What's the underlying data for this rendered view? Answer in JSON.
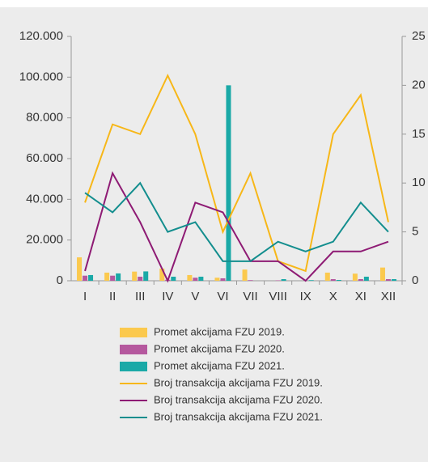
{
  "chart_data": {
    "type": "bar",
    "categories": [
      "I",
      "II",
      "III",
      "IV",
      "V",
      "VI",
      "VII",
      "VIII",
      "IX",
      "X",
      "XI",
      "XII"
    ],
    "ylim": [
      0,
      120000
    ],
    "yticks": [
      {
        "value": 0,
        "label": "0"
      },
      {
        "value": 20000,
        "label": "20.000"
      },
      {
        "value": 40000,
        "label": "40.000"
      },
      {
        "value": 60000,
        "label": "60.000"
      },
      {
        "value": 80000,
        "label": "80.000"
      },
      {
        "value": 100000,
        "label": "100.000"
      },
      {
        "value": 120000,
        "label": "120.000"
      }
    ],
    "y2lim": [
      0,
      25
    ],
    "y2ticks": [
      0,
      5,
      10,
      15,
      20,
      25
    ],
    "series": [
      {
        "name": "Promet akcijama FZU 2019.",
        "type": "bar",
        "color": "#fbc94e",
        "values": [
          11500,
          4000,
          4500,
          6000,
          2800,
          1500,
          5500,
          0,
          0,
          4000,
          3500,
          6500
        ]
      },
      {
        "name": "Promet akcijama FZU 2020.",
        "type": "bar",
        "color": "#b5589e",
        "values": [
          2500,
          2500,
          2000,
          500,
          1500,
          1200,
          300,
          200,
          0,
          800,
          800,
          800
        ]
      },
      {
        "name": "Promet akcijama FZU 2021.",
        "type": "bar",
        "color": "#1aa9a7",
        "values": [
          2800,
          3600,
          4600,
          2000,
          2000,
          96000,
          0,
          800,
          300,
          400,
          2000,
          800
        ]
      },
      {
        "name": "Broj transakcija akcijama FZU 2019.",
        "type": "line",
        "axis": "y2",
        "color": "#f7b718",
        "values": [
          8,
          16,
          15,
          21,
          15,
          5,
          11,
          2,
          1,
          15,
          19,
          6
        ]
      },
      {
        "name": "Broj transakcija akcijama FZU 2020.",
        "type": "line",
        "axis": "y2",
        "color": "#8e1b74",
        "values": [
          1,
          11,
          6,
          0,
          8,
          7,
          2,
          2,
          0,
          3,
          3,
          4
        ]
      },
      {
        "name": "Broj transakcija akcijama FZU 2021.",
        "type": "line",
        "axis": "y2",
        "color": "#138e8e",
        "values": [
          9,
          7,
          10,
          5,
          6,
          2,
          2,
          4,
          3,
          4,
          8,
          5
        ]
      }
    ]
  }
}
